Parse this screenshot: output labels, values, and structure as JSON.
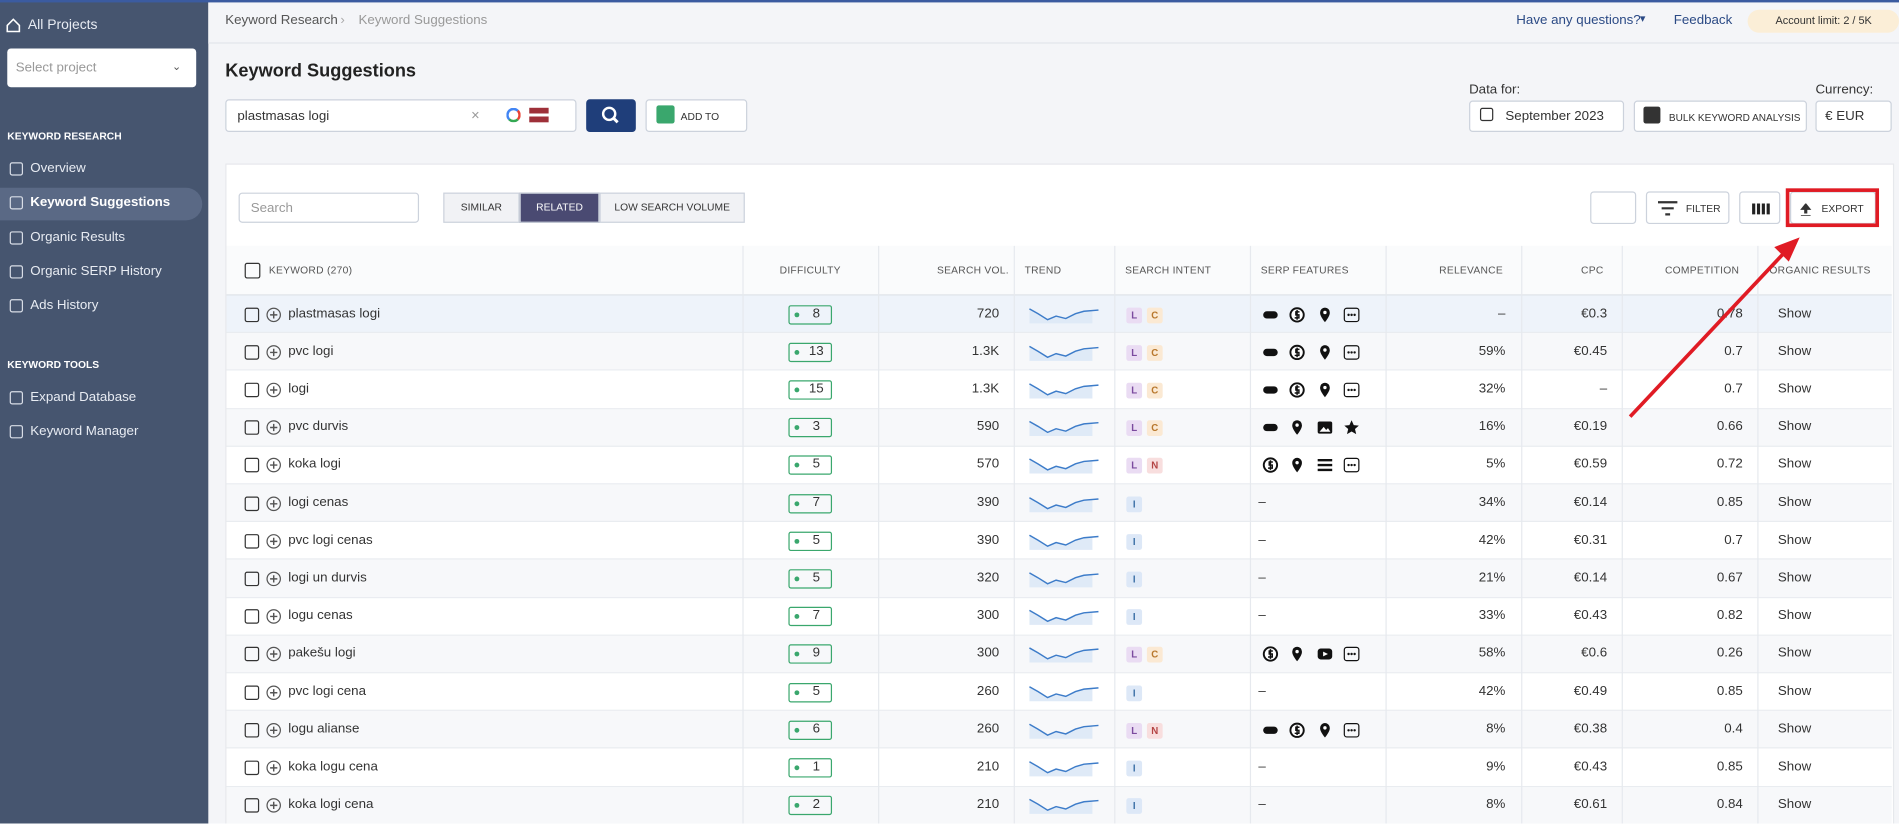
{
  "sidebar": {
    "all_projects": "All Projects",
    "select_project": "Select project",
    "sections": [
      {
        "title": "KEYWORD RESEARCH",
        "items": [
          "Overview",
          "Keyword Suggestions",
          "Organic Results",
          "Organic SERP History",
          "Ads History"
        ]
      },
      {
        "title": "KEYWORD TOOLS",
        "items": [
          "Expand Database",
          "Keyword Manager"
        ]
      }
    ]
  },
  "header": {
    "breadcrumbs": [
      "Keyword Research",
      "Keyword Suggestions"
    ],
    "questions": "Have any questions?",
    "feedback": "Feedback",
    "account_limit": "Account limit: 2 / 5K"
  },
  "page": {
    "title": "Keyword Suggestions",
    "query": "plastmasas logi",
    "add_to": "ADD TO",
    "data_for_label": "Data for:",
    "data_for": "September 2023",
    "bulk": "BULK KEYWORD ANALYSIS",
    "currency_label": "Currency:",
    "currency": "€ EUR"
  },
  "toolbar": {
    "search_placeholder": "Search",
    "tabs": [
      "SIMILAR",
      "RELATED",
      "LOW SEARCH VOLUME"
    ],
    "filter": "FILTER",
    "export": "EXPORT"
  },
  "table": {
    "columns": [
      "KEYWORD",
      "DIFFICULTY",
      "SEARCH VOL.",
      "TREND",
      "SEARCH INTENT",
      "SERP FEATURES",
      "RELEVANCE",
      "CPC",
      "COMPETITION",
      "ORGANIC RESULTS"
    ],
    "keyword_count": "(270)",
    "rows": [
      {
        "keyword": "plastmasas logi",
        "difficulty": 8,
        "volume": "720",
        "intent": [
          "L",
          "C"
        ],
        "serp": [
          "link",
          "dollar",
          "pin",
          "more"
        ],
        "relevance": "–",
        "cpc": "€0.3",
        "competition": "0.78",
        "organic": "Show"
      },
      {
        "keyword": "pvc logi",
        "difficulty": 13,
        "volume": "1.3K",
        "intent": [
          "L",
          "C"
        ],
        "serp": [
          "link",
          "dollar",
          "pin",
          "more"
        ],
        "relevance": "59%",
        "cpc": "€0.45",
        "competition": "0.7",
        "organic": "Show"
      },
      {
        "keyword": "logi",
        "difficulty": 15,
        "volume": "1.3K",
        "intent": [
          "L",
          "C"
        ],
        "serp": [
          "link",
          "dollar",
          "pin",
          "more"
        ],
        "relevance": "32%",
        "cpc": "–",
        "competition": "0.7",
        "organic": "Show"
      },
      {
        "keyword": "pvc durvis",
        "difficulty": 3,
        "volume": "590",
        "intent": [
          "L",
          "C"
        ],
        "serp": [
          "link",
          "pin",
          "image",
          "star"
        ],
        "relevance": "16%",
        "cpc": "€0.19",
        "competition": "0.66",
        "organic": "Show"
      },
      {
        "keyword": "koka logi",
        "difficulty": 5,
        "volume": "570",
        "intent": [
          "L",
          "N"
        ],
        "serp": [
          "dollar",
          "pin",
          "list",
          "more"
        ],
        "relevance": "5%",
        "cpc": "€0.59",
        "competition": "0.72",
        "organic": "Show"
      },
      {
        "keyword": "logi cenas",
        "difficulty": 7,
        "volume": "390",
        "intent": [
          "I"
        ],
        "serp": "–",
        "relevance": "34%",
        "cpc": "€0.14",
        "competition": "0.85",
        "organic": "Show"
      },
      {
        "keyword": "pvc logi cenas",
        "difficulty": 5,
        "volume": "390",
        "intent": [
          "I"
        ],
        "serp": "–",
        "relevance": "42%",
        "cpc": "€0.31",
        "competition": "0.7",
        "organic": "Show"
      },
      {
        "keyword": "logi un durvis",
        "difficulty": 5,
        "volume": "320",
        "intent": [
          "I"
        ],
        "serp": "–",
        "relevance": "21%",
        "cpc": "€0.14",
        "competition": "0.67",
        "organic": "Show"
      },
      {
        "keyword": "logu cenas",
        "difficulty": 7,
        "volume": "300",
        "intent": [
          "I"
        ],
        "serp": "–",
        "relevance": "33%",
        "cpc": "€0.43",
        "competition": "0.82",
        "organic": "Show"
      },
      {
        "keyword": "pakešu logi",
        "difficulty": 9,
        "volume": "300",
        "intent": [
          "L",
          "C"
        ],
        "serp": [
          "dollar",
          "pin",
          "video",
          "more"
        ],
        "relevance": "58%",
        "cpc": "€0.6",
        "competition": "0.26",
        "organic": "Show"
      },
      {
        "keyword": "pvc logi cena",
        "difficulty": 5,
        "volume": "260",
        "intent": [
          "I"
        ],
        "serp": "–",
        "relevance": "42%",
        "cpc": "€0.49",
        "competition": "0.85",
        "organic": "Show"
      },
      {
        "keyword": "logu alianse",
        "difficulty": 6,
        "volume": "260",
        "intent": [
          "L",
          "N"
        ],
        "serp": [
          "link",
          "dollar",
          "pin",
          "more"
        ],
        "relevance": "8%",
        "cpc": "€0.38",
        "competition": "0.4",
        "organic": "Show"
      },
      {
        "keyword": "koka logu cena",
        "difficulty": 1,
        "volume": "210",
        "intent": [
          "I"
        ],
        "serp": "–",
        "relevance": "9%",
        "cpc": "€0.43",
        "competition": "0.85",
        "organic": "Show"
      },
      {
        "keyword": "koka logi cena",
        "difficulty": 2,
        "volume": "210",
        "intent": [
          "I"
        ],
        "serp": "–",
        "relevance": "8%",
        "cpc": "€0.61",
        "competition": "0.84",
        "organic": "Show"
      }
    ]
  }
}
